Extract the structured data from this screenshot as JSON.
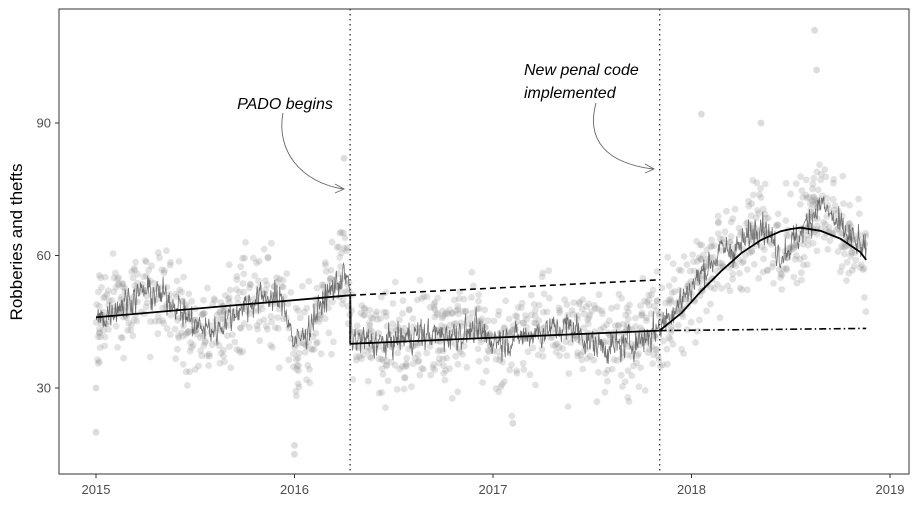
{
  "chart_data": {
    "type": "scatter",
    "title": "",
    "xlabel": "",
    "ylabel": "Robberies and thefts",
    "xlim": [
      2015,
      2019
    ],
    "ylim": [
      13,
      113
    ],
    "grid": false,
    "x_ticks": [
      {
        "value": 2015,
        "label": "2015"
      },
      {
        "value": 2016,
        "label": "2016"
      },
      {
        "value": 2017,
        "label": "2017"
      },
      {
        "value": 2018,
        "label": "2018"
      },
      {
        "value": 2019,
        "label": "2019"
      }
    ],
    "y_ticks": [
      {
        "value": 30,
        "label": "30"
      },
      {
        "value": 60,
        "label": "60"
      },
      {
        "value": 90,
        "label": "90"
      }
    ],
    "interventions": [
      {
        "x": 2016.28,
        "label": "PADO begins"
      },
      {
        "x": 2017.84,
        "label_lines": [
          "New penal code",
          "implemented"
        ]
      }
    ],
    "fit_segments": [
      {
        "style": "solid",
        "points": [
          [
            2015.0,
            46
          ],
          [
            2016.28,
            51
          ]
        ]
      },
      {
        "style": "solid",
        "points": [
          [
            2016.28,
            40
          ],
          [
            2017.84,
            43
          ]
        ]
      },
      {
        "style": "dashed",
        "points": [
          [
            2016.28,
            51
          ],
          [
            2017.84,
            54.5
          ]
        ]
      },
      {
        "style": "solid",
        "points": [
          [
            2017.84,
            43
          ],
          [
            2017.95,
            47
          ],
          [
            2018.05,
            52
          ],
          [
            2018.15,
            56.5
          ],
          [
            2018.25,
            60.5
          ],
          [
            2018.35,
            63.5
          ],
          [
            2018.45,
            65.5
          ],
          [
            2018.5,
            66
          ],
          [
            2018.55,
            66.3
          ],
          [
            2018.65,
            65.6
          ],
          [
            2018.75,
            63.8
          ],
          [
            2018.85,
            60.8
          ],
          [
            2018.88,
            59
          ]
        ]
      },
      {
        "style": "dotdash",
        "points": [
          [
            2017.84,
            43
          ],
          [
            2018.88,
            43.5
          ]
        ]
      }
    ],
    "daily_series": {
      "start": 2015.0,
      "end": 2018.88,
      "level_points": [
        [
          2015.0,
          45
        ],
        [
          2015.12,
          49
        ],
        [
          2015.25,
          52
        ],
        [
          2015.38,
          50
        ],
        [
          2015.5,
          44
        ],
        [
          2015.6,
          43
        ],
        [
          2015.72,
          48
        ],
        [
          2015.85,
          51
        ],
        [
          2015.95,
          49
        ],
        [
          2016.0,
          40
        ],
        [
          2016.05,
          42
        ],
        [
          2016.15,
          50
        ],
        [
          2016.25,
          56
        ],
        [
          2016.28,
          52
        ],
        [
          2016.29,
          41
        ],
        [
          2016.45,
          40
        ],
        [
          2016.6,
          42
        ],
        [
          2016.75,
          42
        ],
        [
          2016.9,
          43
        ],
        [
          2017.0,
          41
        ],
        [
          2017.1,
          41
        ],
        [
          2017.25,
          43
        ],
        [
          2017.4,
          44
        ],
        [
          2017.5,
          40
        ],
        [
          2017.6,
          39
        ],
        [
          2017.75,
          41
        ],
        [
          2017.84,
          44
        ],
        [
          2017.95,
          50
        ],
        [
          2018.05,
          56
        ],
        [
          2018.15,
          61
        ],
        [
          2018.25,
          62
        ],
        [
          2018.35,
          68
        ],
        [
          2018.45,
          60
        ],
        [
          2018.55,
          65
        ],
        [
          2018.65,
          72
        ],
        [
          2018.75,
          66
        ],
        [
          2018.85,
          62
        ],
        [
          2018.88,
          60
        ]
      ]
    },
    "scatter_cloud": {
      "count": 1400,
      "spread": 10,
      "extremes": [
        [
          2015.0,
          20
        ],
        [
          2015.0,
          30
        ],
        [
          2016.0,
          15
        ],
        [
          2016.0,
          17
        ],
        [
          2018.62,
          111
        ],
        [
          2018.63,
          102
        ],
        [
          2018.05,
          92
        ],
        [
          2018.35,
          90
        ],
        [
          2017.1,
          22
        ],
        [
          2016.25,
          82
        ]
      ]
    }
  }
}
